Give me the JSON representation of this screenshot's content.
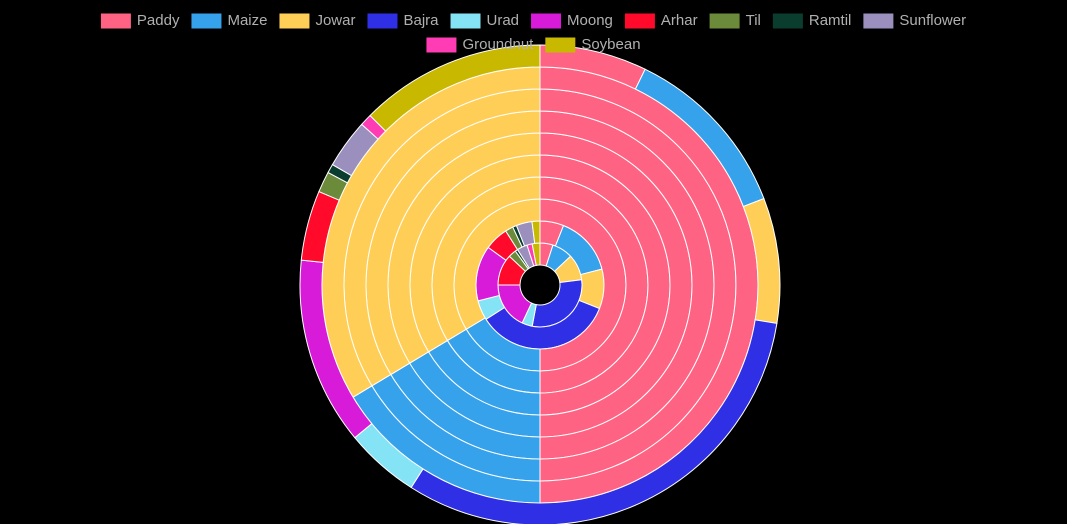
{
  "chart_data": {
    "type": "doughnut",
    "categories": [
      "Paddy",
      "Maize",
      "Jowar",
      "Bajra",
      "Urad",
      "Moong",
      "Arhar",
      "Til",
      "Ramtil",
      "Sunflower",
      "Groundnut",
      "Soybean"
    ],
    "colors": [
      "#ff6384",
      "#36a2eb",
      "#ffce56",
      "#2f2fe6",
      "#84e3f5",
      "#d81bd8",
      "#ff0a2a",
      "#6b8a3a",
      "#0b3d2e",
      "#9b90bd",
      "#ff3cb4",
      "#c9b800"
    ],
    "series": [
      {
        "values": [
          5,
          8,
          10,
          30,
          4,
          18,
          12,
          3,
          1,
          4,
          2,
          3
        ]
      },
      {
        "values": [
          6,
          15,
          10,
          35,
          5,
          14,
          6,
          2,
          1,
          4,
          0,
          2
        ]
      },
      {
        "values": [
          50,
          16.4,
          33.6,
          0,
          0,
          0,
          0,
          0,
          0,
          0,
          0,
          0
        ]
      },
      {
        "values": [
          50,
          16.4,
          33.6,
          0,
          0,
          0,
          0,
          0,
          0,
          0,
          0,
          0
        ]
      },
      {
        "values": [
          50,
          16.4,
          33.6,
          0,
          0,
          0,
          0,
          0,
          0,
          0,
          0,
          0
        ]
      },
      {
        "values": [
          50,
          16.4,
          33.6,
          0,
          0,
          0,
          0,
          0,
          0,
          0,
          0,
          0
        ]
      },
      {
        "values": [
          50,
          16.4,
          33.6,
          0,
          0,
          0,
          0,
          0,
          0,
          0,
          0,
          0
        ]
      },
      {
        "values": [
          50,
          16.4,
          33.6,
          0,
          0,
          0,
          0,
          0,
          0,
          0,
          0,
          0
        ]
      },
      {
        "values": [
          50,
          16.4,
          33.6,
          0,
          0,
          0,
          0,
          0,
          0,
          0,
          0,
          0
        ]
      },
      {
        "values": [
          7.2,
          11.9,
          8.4,
          31.4,
          5,
          12.6,
          4.7,
          1.4,
          0.6,
          3.3,
          0.8,
          12.5
        ]
      }
    ]
  }
}
